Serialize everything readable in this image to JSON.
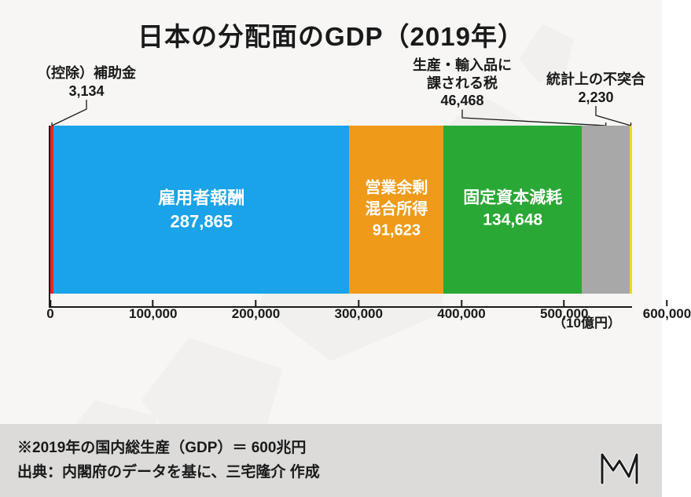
{
  "title": "日本の分配面のGDP（2019年）",
  "title_fontsize": 33,
  "background_color": "#f7f6f4",
  "chart": {
    "type": "stacked-bar-horizontal",
    "total": 600000,
    "axis": {
      "ticks": [
        0,
        100000,
        200000,
        300000,
        400000,
        500000,
        600000
      ],
      "tick_labels": [
        "0",
        "100,000",
        "200,000",
        "300,000",
        "400,000",
        "500,000",
        "600,000"
      ],
      "unit": "（10億円）",
      "axis_color": "#1a1a1a"
    },
    "segments": [
      {
        "key": "subsidy",
        "label": "（控除）補助金",
        "value": 3134,
        "value_label": "3,134",
        "color": "#e52620",
        "in_bar": false
      },
      {
        "key": "employees",
        "label": "雇用者報酬",
        "value": 287865,
        "value_label": "287,865",
        "color": "#1aa3e8",
        "in_bar": true,
        "label_fontsize": 22
      },
      {
        "key": "surplus",
        "label": "営業余剰\n混合所得",
        "value": 91623,
        "value_label": "91,623",
        "color": "#f09a1a",
        "in_bar": true,
        "label_fontsize": 20
      },
      {
        "key": "capital",
        "label": "固定資本減耗",
        "value": 134648,
        "value_label": "134,648",
        "color": "#2aa836",
        "in_bar": true,
        "label_fontsize": 21
      },
      {
        "key": "tax",
        "label": "生産・輸入品に\n課される税",
        "value": 46468,
        "value_label": "46,468",
        "color": "#a8a8a8",
        "in_bar": false
      },
      {
        "key": "discrep",
        "label": "統計上の不突合",
        "value": 2230,
        "value_label": "2,230",
        "color": "#f2d80e",
        "in_bar": false
      }
    ],
    "callout_fontsize": 18
  },
  "footer": {
    "line1": "※2019年の国内総生産（GDP）＝ 600兆円",
    "line2": "出典：内閣府のデータを基に、三宅隆介 作成",
    "fontsize": 19,
    "bg_color": "#dcdbd9"
  }
}
